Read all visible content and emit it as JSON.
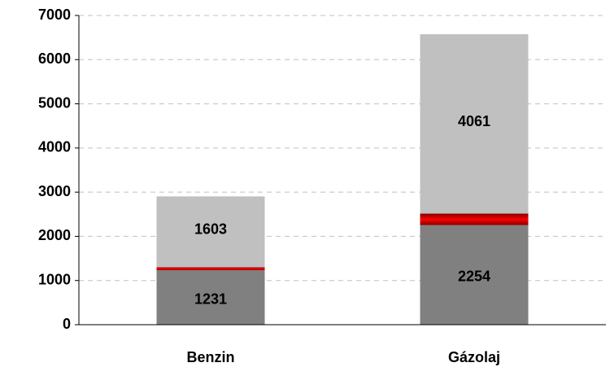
{
  "chart_data": {
    "type": "stacked_bar",
    "categories": [
      "Benzin",
      "Gázolaj"
    ],
    "series": [
      {
        "color": "#808080",
        "values": [
          1231,
          2254
        ],
        "data_labels": true
      },
      {
        "color": "#ff0000",
        "values": [
          70,
          260
        ],
        "data_labels": false
      },
      {
        "color": "#c0c0c0",
        "values": [
          1603,
          4061
        ],
        "data_labels": true
      }
    ],
    "ylim": [
      0,
      7000
    ],
    "yticks": [
      0,
      1000,
      2000,
      3000,
      4000,
      5000,
      6000,
      7000
    ],
    "grid": true
  }
}
